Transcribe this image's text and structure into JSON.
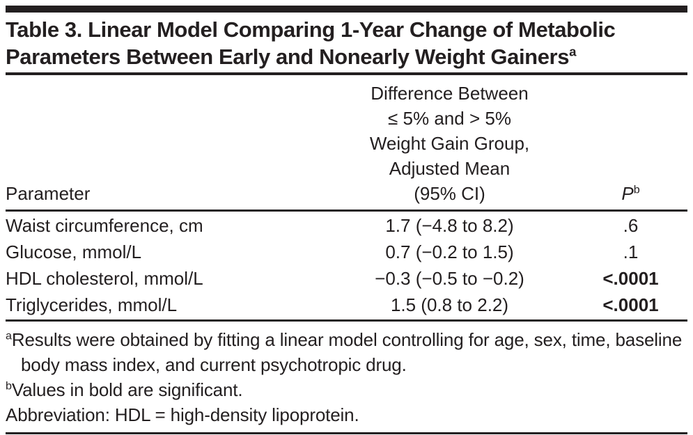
{
  "table": {
    "title": "Table 3. Linear Model Comparing 1-Year Change of Metabolic Parameters Between Early and Nonearly Weight Gainers",
    "title_superscript": "a",
    "text_color": "#231f20",
    "columns": {
      "parameter": {
        "label": "Parameter"
      },
      "difference": {
        "label": "Difference Between ≤ 5% and > 5% Weight Gain Group, Adjusted Mean (95% CI)",
        "lines": [
          "Difference Between",
          "≤ 5% and > 5%",
          "Weight Gain Group,",
          "Adjusted Mean",
          "(95% CI)"
        ]
      },
      "p": {
        "label": "P",
        "superscript": "b"
      }
    },
    "rows": [
      {
        "parameter": "Waist circumference, cm",
        "difference": "1.7 (−4.8 to 8.2)",
        "p": ".6",
        "significant": false
      },
      {
        "parameter": "Glucose, mmol/L",
        "difference": "0.7 (−0.2 to 1.5)",
        "p": ".1",
        "significant": false
      },
      {
        "parameter": "HDL cholesterol, mmol/L",
        "difference": "−0.3 (−0.5 to −0.2)",
        "p": "<.0001",
        "significant": true
      },
      {
        "parameter": "Triglycerides, mmol/L",
        "difference": "1.5 (0.8 to 2.2)",
        "p": "<.0001",
        "significant": true
      }
    ],
    "footnotes": [
      {
        "marker": "a",
        "text": "Results were obtained by fitting a linear model controlling for age, sex, time, baseline body mass index, and current psychotropic drug."
      },
      {
        "marker": "b",
        "text": "Values in bold are significant."
      },
      {
        "marker": "",
        "text": "Abbreviation: HDL = high-density lipoprotein."
      }
    ]
  }
}
